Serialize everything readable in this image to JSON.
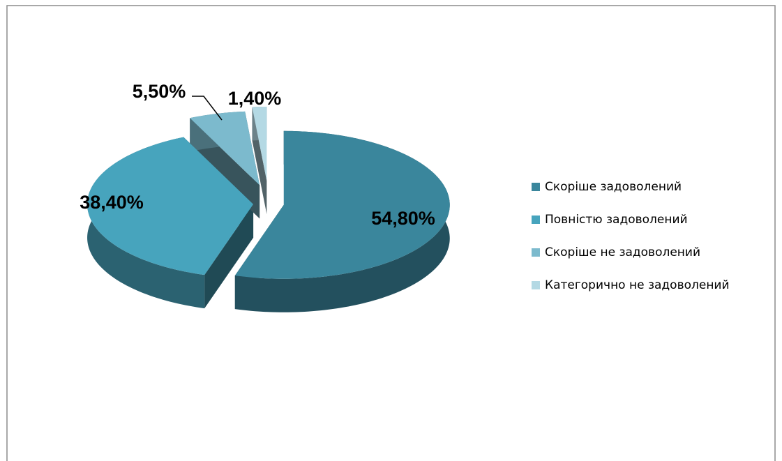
{
  "chart_data": {
    "type": "pie",
    "categories": [
      "Скоріше задоволений",
      "Повністю задоволений",
      "Скоріше не задоволений",
      "Категорично не задоволений"
    ],
    "values": [
      54.8,
      38.4,
      5.5,
      1.4
    ],
    "value_labels": [
      "54,80%",
      "38,40%",
      "5,50%",
      "1,40%"
    ],
    "colors": [
      "#3a869c",
      "#47a4bd",
      "#7cbacd",
      "#b4d9e4"
    ],
    "legend": "right"
  }
}
